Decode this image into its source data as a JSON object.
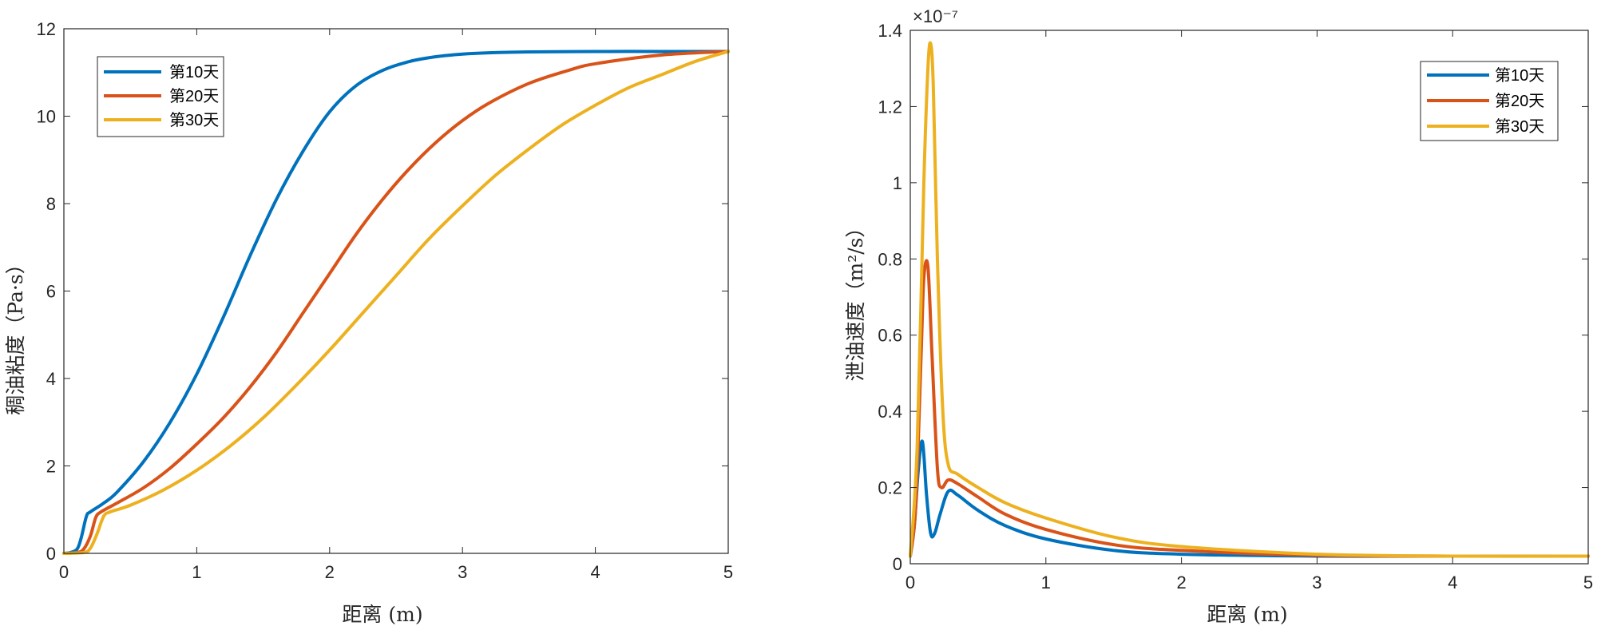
{
  "chart_data": [
    {
      "type": "line",
      "xlabel": "距离 (m)",
      "ylabel": "稠油粘度（Pa·s）",
      "xlim": [
        0,
        5
      ],
      "ylim": [
        0,
        12
      ],
      "xticks": [
        "0",
        "1",
        "2",
        "3",
        "4",
        "5"
      ],
      "yticks": [
        "0",
        "2",
        "4",
        "6",
        "8",
        "10",
        "12"
      ],
      "legend_position": "top-left",
      "grid": false,
      "series": [
        {
          "name": "第10天",
          "color": "#0072BD",
          "x": [
            0,
            0.05,
            0.1,
            0.13,
            0.17,
            0.2,
            0.3,
            0.4,
            0.6,
            0.8,
            1.0,
            1.2,
            1.4,
            1.6,
            1.8,
            2.0,
            2.2,
            2.4,
            2.6,
            2.8,
            3.0,
            3.2,
            3.5,
            4.0,
            4.5,
            5.0
          ],
          "y": [
            0,
            0.02,
            0.1,
            0.35,
            0.85,
            0.95,
            1.15,
            1.4,
            2.1,
            3.0,
            4.1,
            5.4,
            6.8,
            8.1,
            9.2,
            10.1,
            10.7,
            11.05,
            11.25,
            11.36,
            11.42,
            11.45,
            11.47,
            11.48,
            11.48,
            11.48
          ]
        },
        {
          "name": "第20天",
          "color": "#D95319",
          "x": [
            0,
            0.1,
            0.15,
            0.2,
            0.24,
            0.28,
            0.4,
            0.6,
            0.8,
            1.0,
            1.2,
            1.4,
            1.6,
            1.8,
            2.0,
            2.2,
            2.4,
            2.6,
            2.8,
            3.0,
            3.2,
            3.5,
            3.8,
            4.0,
            4.5,
            5.0
          ],
          "y": [
            0,
            0.02,
            0.1,
            0.4,
            0.82,
            0.95,
            1.15,
            1.5,
            1.95,
            2.5,
            3.1,
            3.8,
            4.6,
            5.5,
            6.4,
            7.3,
            8.1,
            8.8,
            9.4,
            9.9,
            10.3,
            10.75,
            11.05,
            11.2,
            11.4,
            11.48
          ]
        },
        {
          "name": "第30天",
          "color": "#EDB120",
          "x": [
            0,
            0.15,
            0.2,
            0.25,
            0.3,
            0.35,
            0.5,
            0.75,
            1.0,
            1.25,
            1.5,
            1.75,
            2.0,
            2.25,
            2.5,
            2.75,
            3.0,
            3.25,
            3.5,
            3.75,
            4.0,
            4.25,
            4.5,
            4.75,
            5.0
          ],
          "y": [
            0,
            0.02,
            0.12,
            0.45,
            0.85,
            0.95,
            1.1,
            1.45,
            1.9,
            2.45,
            3.1,
            3.85,
            4.65,
            5.5,
            6.35,
            7.2,
            7.95,
            8.65,
            9.25,
            9.8,
            10.25,
            10.65,
            10.95,
            11.25,
            11.48
          ]
        }
      ]
    },
    {
      "type": "line",
      "xlabel": "距离 (m)",
      "ylabel": "泄油速度（m²/s）",
      "y_exponent": "×10⁻⁷",
      "xlim": [
        0,
        5
      ],
      "ylim": [
        0,
        1.4
      ],
      "xticks": [
        "0",
        "1",
        "2",
        "3",
        "4",
        "5"
      ],
      "yticks": [
        "0",
        "0.2",
        "0.4",
        "0.6",
        "0.8",
        "1",
        "1.2",
        "1.4"
      ],
      "legend_position": "top-right",
      "grid": false,
      "series": [
        {
          "name": "第10天",
          "color": "#0072BD",
          "x": [
            0,
            0.03,
            0.06,
            0.09,
            0.12,
            0.15,
            0.18,
            0.22,
            0.28,
            0.35,
            0.5,
            0.7,
            1.0,
            1.5,
            2.0,
            3.0,
            4.0,
            5.0
          ],
          "y": [
            0.02,
            0.1,
            0.25,
            0.32,
            0.18,
            0.08,
            0.08,
            0.13,
            0.19,
            0.18,
            0.14,
            0.1,
            0.065,
            0.035,
            0.025,
            0.02,
            0.02,
            0.02
          ]
        },
        {
          "name": "第20天",
          "color": "#D95319",
          "x": [
            0,
            0.04,
            0.08,
            0.1,
            0.13,
            0.16,
            0.2,
            0.23,
            0.28,
            0.35,
            0.5,
            0.7,
            1.0,
            1.5,
            2.0,
            3.0,
            4.0,
            5.0
          ],
          "y": [
            0.02,
            0.15,
            0.55,
            0.75,
            0.78,
            0.55,
            0.25,
            0.2,
            0.22,
            0.21,
            0.175,
            0.13,
            0.09,
            0.05,
            0.035,
            0.022,
            0.02,
            0.02
          ]
        },
        {
          "name": "第30天",
          "color": "#EDB120",
          "x": [
            0,
            0.05,
            0.1,
            0.13,
            0.15,
            0.17,
            0.2,
            0.24,
            0.28,
            0.35,
            0.5,
            0.7,
            1.0,
            1.5,
            2.0,
            3.0,
            4.0,
            5.0
          ],
          "y": [
            0.02,
            0.3,
            1.0,
            1.3,
            1.365,
            1.25,
            0.8,
            0.4,
            0.26,
            0.235,
            0.2,
            0.16,
            0.12,
            0.07,
            0.045,
            0.025,
            0.02,
            0.02
          ]
        }
      ]
    }
  ]
}
